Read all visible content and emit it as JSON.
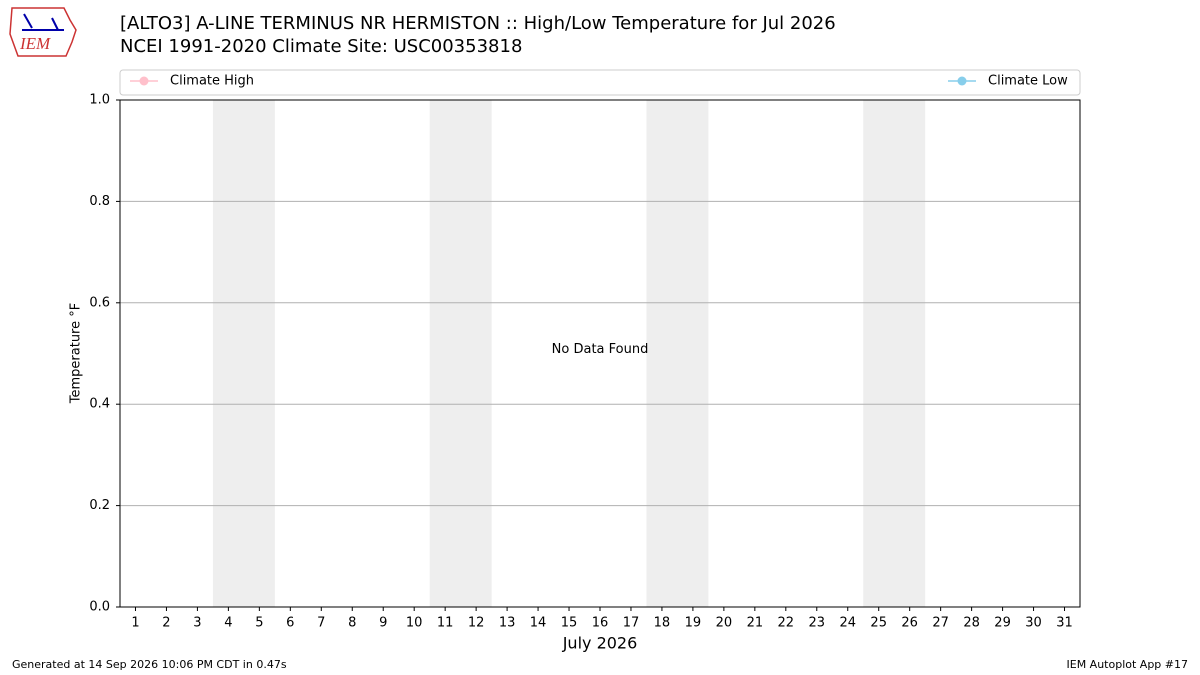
{
  "chart_data": {
    "type": "line",
    "title": "[ALTO3] A-LINE TERMINUS NR HERMISTON :: High/Low Temperature for Jul 2026",
    "subtitle": "NCEI 1991-2020 Climate Site: USC00353818",
    "logo_text": "IEM",
    "ylabel": "Temperature °F",
    "xlabel": "July 2026",
    "annotation": "No Data Found",
    "x": [
      1,
      2,
      3,
      4,
      5,
      6,
      7,
      8,
      9,
      10,
      11,
      12,
      13,
      14,
      15,
      16,
      17,
      18,
      19,
      20,
      21,
      22,
      23,
      24,
      25,
      26,
      27,
      28,
      29,
      30,
      31
    ],
    "series": [
      {
        "name": "Climate High",
        "color": "#ffc0cb",
        "values": [
          null,
          null,
          null,
          null,
          null,
          null,
          null,
          null,
          null,
          null,
          null,
          null,
          null,
          null,
          null,
          null,
          null,
          null,
          null,
          null,
          null,
          null,
          null,
          null,
          null,
          null,
          null,
          null,
          null,
          null,
          null
        ]
      },
      {
        "name": "Climate Low",
        "color": "#87ceeb",
        "values": [
          null,
          null,
          null,
          null,
          null,
          null,
          null,
          null,
          null,
          null,
          null,
          null,
          null,
          null,
          null,
          null,
          null,
          null,
          null,
          null,
          null,
          null,
          null,
          null,
          null,
          null,
          null,
          null,
          null,
          null,
          null
        ]
      }
    ],
    "shaded_ranges": [
      [
        3.5,
        5.5
      ],
      [
        10.5,
        12.5
      ],
      [
        17.5,
        19.5
      ],
      [
        24.5,
        26.5
      ]
    ],
    "shade_color": "#eeeeee",
    "xlim": [
      0.5,
      31.5
    ],
    "xticks": [
      1,
      2,
      3,
      4,
      5,
      6,
      7,
      8,
      9,
      10,
      11,
      12,
      13,
      14,
      15,
      16,
      17,
      18,
      19,
      20,
      21,
      22,
      23,
      24,
      25,
      26,
      27,
      28,
      29,
      30,
      31
    ],
    "ylim": [
      0,
      1
    ],
    "yticks": [
      {
        "value": 0,
        "label": "0.0"
      },
      0.2,
      0.4,
      0.6,
      0.8,
      {
        "value": 1,
        "label": "1.0"
      }
    ],
    "grid": true,
    "footer_left": "Generated at 14 Sep 2026 10:06 PM CDT in 0.47s",
    "footer_right": "IEM Autoplot App #17"
  }
}
